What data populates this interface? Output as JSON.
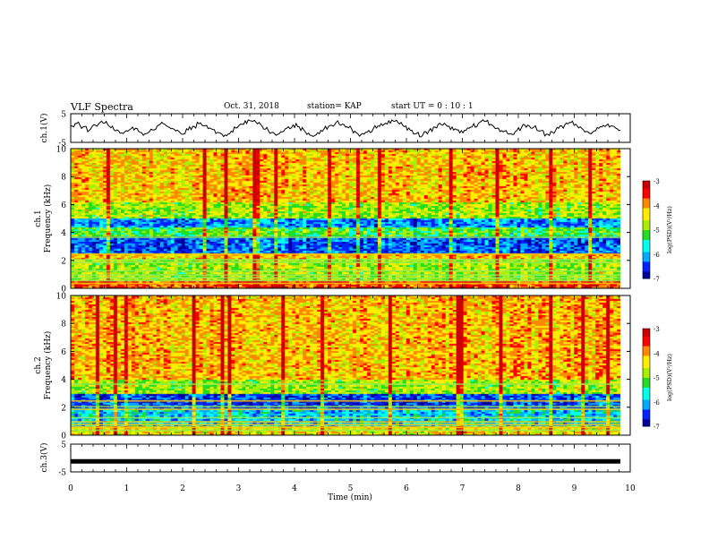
{
  "header": {
    "title": "VLF Spectra",
    "date": "Oct. 31, 2018",
    "station": "station= KAP",
    "start": "start  UT =   0 : 10 : 1"
  },
  "colors": {
    "spectrogram": [
      "#00009a",
      "#0022ff",
      "#00aaff",
      "#00ffee",
      "#22dd22",
      "#aaee00",
      "#ffee00",
      "#ff8800",
      "#ff0000",
      "#cc0000"
    ],
    "trace": "#000000"
  },
  "chart_data": [
    {
      "type": "line",
      "panel": "ch1-waveform",
      "ylabel": "ch.1(V)",
      "ylim": [
        -5,
        5
      ],
      "yticks": [
        "5",
        "-5"
      ],
      "x_range": [
        0,
        10
      ],
      "series": [
        {
          "values": [
            0.8,
            1.6,
            0.4,
            -0.8,
            1.0,
            2.4,
            1.2,
            -0.6,
            -1.8,
            -0.9,
            0.3,
            -1.2,
            -2.0,
            -0.4,
            0.7,
            1.5,
            0.2,
            -1.0,
            -2.2,
            -0.7,
            0.5,
            1.8,
            0.9,
            -0.5,
            -1.6,
            -2.4,
            -1.1,
            0.2,
            1.3,
            2.6,
            2.0,
            0.6,
            -0.9,
            -2.0,
            -1.3,
            0.0,
            1.1,
            0.4,
            -1.4,
            -2.6,
            -1.6,
            -0.3,
            0.9,
            2.1,
            1.4,
            0.1,
            -1.1,
            -2.3,
            -1.5,
            -0.2,
            0.6,
            1.7,
            2.8,
            1.9,
            0.5,
            -0.8,
            -1.9,
            -2.5,
            -1.0,
            0.3,
            1.2,
            0.6,
            -0.7,
            -1.7,
            -0.8,
            0.4,
            1.6,
            2.3,
            1.3,
            -0.1,
            -1.3,
            -2.1,
            -1.2,
            0.2,
            1.0,
            0.3,
            -1.0,
            -2.2,
            -1.4,
            -0.1,
            1.1,
            1.9,
            0.8,
            -0.6,
            -1.8,
            -0.9,
            0.4,
            1.4,
            0.5,
            -0.8
          ]
        }
      ]
    },
    {
      "type": "heatmap",
      "panel": "ch1-spectrogram",
      "ylabel_top": "ch.1",
      "ylabel": "Frequency  (kHz)",
      "ylim": [
        0,
        10
      ],
      "yticks": [
        "0",
        "2",
        "4",
        "6",
        "8",
        "10"
      ],
      "x_range": [
        0,
        10
      ],
      "colorbar": {
        "label": "log(PSD)(V²/Hz)",
        "range": [
          -7,
          -3
        ],
        "ticks": [
          "-3",
          "-4",
          "-5",
          "-6",
          "-7"
        ]
      }
    },
    {
      "type": "heatmap",
      "panel": "ch2-spectrogram",
      "ylabel_top": "ch.2",
      "ylabel": "Frequency  (kHz)",
      "ylim": [
        0,
        10
      ],
      "yticks": [
        "0",
        "2",
        "4",
        "6",
        "8",
        "10"
      ],
      "x_range": [
        0,
        10
      ],
      "colorbar": {
        "label": "log(PSD)(V²/Hz)",
        "range": [
          -7,
          -3
        ],
        "ticks": [
          "-3",
          "-4",
          "-5",
          "-6",
          "-7"
        ]
      }
    },
    {
      "type": "line",
      "panel": "ch3-waveform",
      "ylabel": "ch.3(V)",
      "ylim": [
        -5,
        5
      ],
      "yticks": [
        "5",
        "-5"
      ],
      "x_range": [
        0,
        10
      ],
      "series": [
        {
          "values": [
            -1.2,
            -1.2
          ]
        }
      ]
    }
  ],
  "xaxis": {
    "label": "Time  (min)",
    "ticks": [
      "0",
      "1",
      "2",
      "3",
      "4",
      "5",
      "6",
      "7",
      "8",
      "9",
      "10"
    ]
  }
}
